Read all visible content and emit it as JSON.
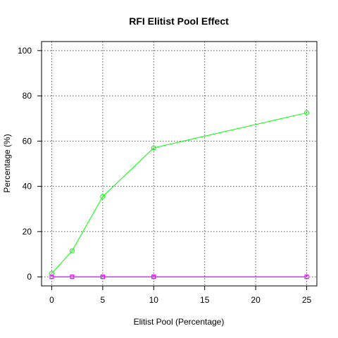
{
  "chart_data": {
    "type": "line",
    "title": "RFI Elitist Pool Effect",
    "xlabel": "Elitist Pool (Percentage)",
    "ylabel": "Percentage (%)",
    "x": [
      0,
      2,
      5,
      10,
      25
    ],
    "xlim": [
      -1,
      26
    ],
    "ylim": [
      -4,
      104
    ],
    "xticks": [
      0,
      5,
      10,
      15,
      20,
      25
    ],
    "yticks": [
      0,
      20,
      40,
      60,
      80,
      100
    ],
    "grid": true,
    "grid_style": "dotted",
    "series": [
      {
        "values": [
          1.5,
          11.5,
          35.5,
          57,
          72.5
        ],
        "color": "#00ff00",
        "marker": "circle"
      },
      {
        "values": [
          0,
          0,
          0,
          0,
          0
        ],
        "color": "#0000ff",
        "marker": "square"
      },
      {
        "values": [
          0,
          0,
          0,
          0,
          0
        ],
        "color": "#ff00ff",
        "marker": "square"
      }
    ]
  }
}
